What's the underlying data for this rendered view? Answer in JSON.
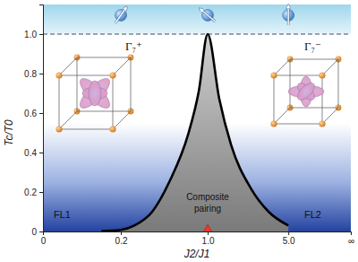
{
  "chart_data": {
    "type": "area",
    "x_label": "J2/J1",
    "y_label": "Tc/T0",
    "x": [
      0.15,
      0.2,
      0.324,
      0.489,
      0.654,
      0.819,
      0.918,
      1.0,
      1.578,
      2.156,
      3.133,
      4.022,
      5.0
    ],
    "values": [
      0.002,
      0.008,
      0.03,
      0.1,
      0.26,
      0.49,
      0.71,
      1.0,
      0.67,
      0.44,
      0.22,
      0.1,
      0.03
    ],
    "color": "#000000",
    "xlim": [
      0,
      null
    ],
    "xticks": [
      0,
      0.2,
      {
        "value": 1,
        "label": "1.0"
      },
      {
        "value": 5,
        "label": "5.0"
      },
      {
        "value": null,
        "label": "∞"
      }
    ],
    "ylim": [
      0,
      1.15
    ],
    "yticks": [
      0,
      0.2,
      0.4,
      0.6,
      0.8,
      {
        "value": 1,
        "label": "1.0"
      }
    ],
    "reference_line": {
      "y": 1,
      "line_style": "dashed"
    },
    "critical_point": {
      "x": 1,
      "y": 0,
      "color": "#e8392a",
      "marker": "triangle"
    },
    "annotations": [
      "FL1",
      "Composite",
      "pairing",
      "FL2",
      "Γ₇⁺",
      "Γ₇⁻"
    ],
    "grid": false
  }
}
